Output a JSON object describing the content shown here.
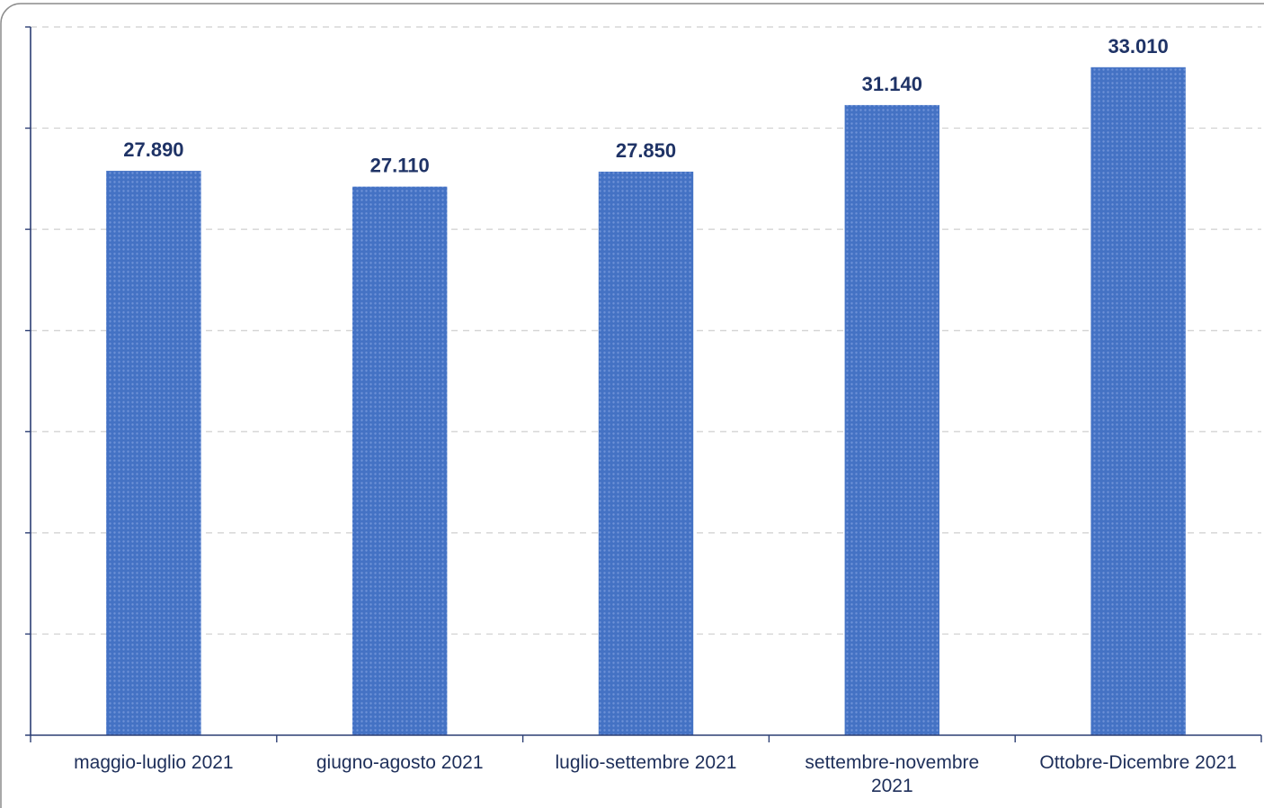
{
  "chart_data": {
    "type": "bar",
    "title": "",
    "xlabel": "",
    "ylabel": "",
    "categories": [
      [
        "maggio-luglio 2021"
      ],
      [
        "giugno-agosto 2021"
      ],
      [
        "luglio-settembre 2021"
      ],
      [
        "settembre-novembre",
        "2021"
      ],
      [
        "Ottobre-Dicembre 2021"
      ]
    ],
    "values": [
      27890,
      27110,
      27850,
      31140,
      33010
    ],
    "value_labels": [
      "27.890",
      "27.110",
      "27.850",
      "31.140",
      "33.010"
    ],
    "ylim": [
      0,
      35000
    ],
    "y_tick_step": 5000,
    "grid": true,
    "legend": "none",
    "colors": {
      "bar": "#4472c4",
      "bar_pattern": "#6f93d8",
      "axis": "#2c3e73",
      "label": "#1f3366"
    }
  }
}
